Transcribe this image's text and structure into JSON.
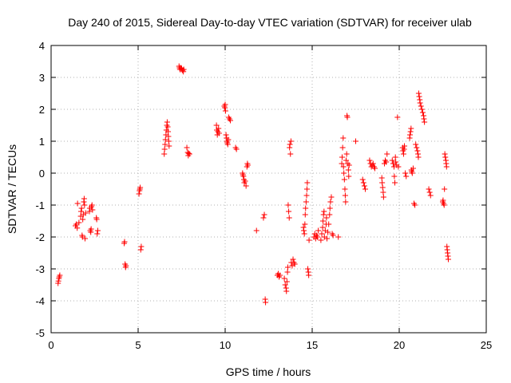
{
  "chart_data": {
    "type": "scatter",
    "title": "Day 240 of 2015, Sidereal Day-to-day VTEC variation (SDTVAR) for receiver ulab",
    "xlabel": "GPS time / hours",
    "ylabel": "SDTVAR / TECUs",
    "xlim": [
      0,
      25
    ],
    "ylim": [
      -5,
      4
    ],
    "xticks": [
      0,
      5,
      10,
      15,
      20,
      25
    ],
    "yticks": [
      -5,
      -4,
      -3,
      -2,
      -1,
      0,
      1,
      2,
      3,
      4
    ],
    "grid": true,
    "marker": "plus",
    "color": "#ff0000",
    "series": [
      {
        "name": "SDTVAR",
        "points": [
          [
            0.4,
            -3.45
          ],
          [
            0.42,
            -3.38
          ],
          [
            0.45,
            -3.3
          ],
          [
            0.47,
            -3.25
          ],
          [
            0.5,
            -3.2
          ],
          [
            1.4,
            -1.65
          ],
          [
            1.45,
            -1.6
          ],
          [
            1.5,
            -1.72
          ],
          [
            1.52,
            -0.95
          ],
          [
            1.6,
            -1.55
          ],
          [
            1.7,
            -1.35
          ],
          [
            1.72,
            -1.2
          ],
          [
            1.75,
            -1.1
          ],
          [
            1.78,
            -1.95
          ],
          [
            1.8,
            -2.0
          ],
          [
            1.82,
            -1.45
          ],
          [
            1.85,
            -1.3
          ],
          [
            1.88,
            -0.9
          ],
          [
            1.9,
            -0.8
          ],
          [
            1.92,
            -1.0
          ],
          [
            1.95,
            -2.05
          ],
          [
            1.98,
            -1.25
          ],
          [
            2.2,
            -1.2
          ],
          [
            2.22,
            -1.1
          ],
          [
            2.25,
            -1.8
          ],
          [
            2.28,
            -1.85
          ],
          [
            2.3,
            -1.75
          ],
          [
            2.32,
            -1.05
          ],
          [
            2.35,
            -1.0
          ],
          [
            2.38,
            -1.15
          ],
          [
            2.6,
            -1.4
          ],
          [
            2.62,
            -1.45
          ],
          [
            2.65,
            -1.9
          ],
          [
            2.68,
            -1.8
          ],
          [
            4.2,
            -2.2
          ],
          [
            4.22,
            -2.15
          ],
          [
            4.25,
            -2.85
          ],
          [
            4.28,
            -2.95
          ],
          [
            4.3,
            -2.9
          ],
          [
            5.05,
            -0.65
          ],
          [
            5.08,
            -0.55
          ],
          [
            5.1,
            -0.5
          ],
          [
            5.12,
            -0.45
          ],
          [
            5.15,
            -2.4
          ],
          [
            5.18,
            -2.3
          ],
          [
            6.5,
            0.6
          ],
          [
            6.52,
            0.75
          ],
          [
            6.55,
            0.9
          ],
          [
            6.57,
            1.05
          ],
          [
            6.6,
            1.2
          ],
          [
            6.62,
            1.35
          ],
          [
            6.65,
            1.5
          ],
          [
            6.67,
            1.6
          ],
          [
            6.7,
            1.45
          ],
          [
            6.72,
            1.3
          ],
          [
            6.74,
            1.15
          ],
          [
            6.76,
            1.0
          ],
          [
            6.78,
            0.85
          ],
          [
            7.35,
            3.35
          ],
          [
            7.38,
            3.3
          ],
          [
            7.4,
            3.25
          ],
          [
            7.45,
            3.3
          ],
          [
            7.5,
            3.28
          ],
          [
            7.55,
            3.22
          ],
          [
            7.6,
            3.18
          ],
          [
            7.62,
            3.25
          ],
          [
            7.8,
            0.8
          ],
          [
            7.85,
            0.65
          ],
          [
            7.88,
            0.55
          ],
          [
            7.9,
            0.62
          ],
          [
            7.95,
            0.6
          ],
          [
            9.5,
            1.5
          ],
          [
            9.52,
            1.35
          ],
          [
            9.55,
            1.2
          ],
          [
            9.58,
            1.3
          ],
          [
            9.62,
            1.4
          ],
          [
            9.65,
            1.25
          ],
          [
            9.95,
            2.1
          ],
          [
            9.98,
            2.05
          ],
          [
            10.0,
            2.15
          ],
          [
            10.02,
            1.95
          ],
          [
            10.05,
            1.2
          ],
          [
            10.08,
            1.1
          ],
          [
            10.1,
            1.0
          ],
          [
            10.12,
            0.95
          ],
          [
            10.15,
            0.9
          ],
          [
            10.18,
            1.05
          ],
          [
            10.2,
            1.75
          ],
          [
            10.25,
            1.7
          ],
          [
            10.3,
            1.65
          ],
          [
            10.6,
            0.8
          ],
          [
            10.65,
            0.75
          ],
          [
            11.0,
            0.0
          ],
          [
            11.02,
            -0.05
          ],
          [
            11.05,
            -0.1
          ],
          [
            11.08,
            -0.2
          ],
          [
            11.1,
            -0.3
          ],
          [
            11.15,
            -0.25
          ],
          [
            11.2,
            -0.4
          ],
          [
            11.25,
            0.2
          ],
          [
            11.28,
            0.3
          ],
          [
            11.3,
            0.25
          ],
          [
            11.8,
            -1.8
          ],
          [
            12.2,
            -1.4
          ],
          [
            12.25,
            -1.3
          ],
          [
            12.3,
            -3.95
          ],
          [
            12.32,
            -4.05
          ],
          [
            13.0,
            -3.2
          ],
          [
            13.05,
            -3.15
          ],
          [
            13.1,
            -3.25
          ],
          [
            13.15,
            -3.2
          ],
          [
            13.4,
            -3.3
          ],
          [
            13.45,
            -3.5
          ],
          [
            13.5,
            -3.6
          ],
          [
            13.52,
            -3.7
          ],
          [
            13.55,
            -3.4
          ],
          [
            13.58,
            -3.1
          ],
          [
            13.6,
            -2.95
          ],
          [
            13.62,
            -1.0
          ],
          [
            13.65,
            -1.2
          ],
          [
            13.68,
            -1.4
          ],
          [
            13.7,
            0.8
          ],
          [
            13.72,
            0.9
          ],
          [
            13.75,
            0.6
          ],
          [
            13.78,
            1.0
          ],
          [
            13.8,
            -2.8
          ],
          [
            13.85,
            -2.9
          ],
          [
            13.9,
            -2.7
          ],
          [
            13.95,
            -2.8
          ],
          [
            14.0,
            -2.85
          ],
          [
            14.5,
            -1.7
          ],
          [
            14.52,
            -1.8
          ],
          [
            14.55,
            -1.9
          ],
          [
            14.58,
            -1.6
          ],
          [
            14.6,
            -1.3
          ],
          [
            14.62,
            -1.1
          ],
          [
            14.65,
            -0.9
          ],
          [
            14.68,
            -0.7
          ],
          [
            14.7,
            -0.5
          ],
          [
            14.72,
            -0.3
          ],
          [
            14.75,
            -3.0
          ],
          [
            14.78,
            -3.1
          ],
          [
            14.8,
            -3.2
          ],
          [
            14.82,
            -2.1
          ],
          [
            15.1,
            -2.0
          ],
          [
            15.15,
            -1.9
          ],
          [
            15.2,
            -2.05
          ],
          [
            15.25,
            -1.95
          ],
          [
            15.3,
            -2.0
          ],
          [
            15.35,
            -1.8
          ],
          [
            15.5,
            -2.1
          ],
          [
            15.55,
            -1.9
          ],
          [
            15.6,
            -1.7
          ],
          [
            15.62,
            -1.5
          ],
          [
            15.65,
            -1.3
          ],
          [
            15.68,
            -1.2
          ],
          [
            15.7,
            -2.0
          ],
          [
            15.75,
            -1.8
          ],
          [
            15.8,
            -1.6
          ],
          [
            15.82,
            -1.4
          ],
          [
            15.85,
            -2.05
          ],
          [
            15.9,
            -1.85
          ],
          [
            15.95,
            -1.6
          ],
          [
            16.0,
            -1.3
          ],
          [
            16.02,
            -1.1
          ],
          [
            16.05,
            -0.9
          ],
          [
            16.1,
            -0.75
          ],
          [
            16.15,
            -1.9
          ],
          [
            16.2,
            -1.95
          ],
          [
            16.5,
            -2.0
          ],
          [
            16.7,
            0.3
          ],
          [
            16.72,
            0.5
          ],
          [
            16.75,
            0.8
          ],
          [
            16.78,
            1.1
          ],
          [
            16.8,
            0.2
          ],
          [
            16.82,
            0.0
          ],
          [
            16.85,
            -0.2
          ],
          [
            16.88,
            -0.5
          ],
          [
            16.9,
            -0.7
          ],
          [
            16.92,
            -0.9
          ],
          [
            16.95,
            0.4
          ],
          [
            16.98,
            0.6
          ],
          [
            17.0,
            1.8
          ],
          [
            17.02,
            1.75
          ],
          [
            17.05,
            0.3
          ],
          [
            17.08,
            0.1
          ],
          [
            17.1,
            -0.1
          ],
          [
            17.12,
            0.25
          ],
          [
            17.5,
            1.0
          ],
          [
            17.9,
            -0.2
          ],
          [
            17.95,
            -0.3
          ],
          [
            18.0,
            -0.4
          ],
          [
            18.05,
            -0.5
          ],
          [
            18.3,
            0.4
          ],
          [
            18.35,
            0.3
          ],
          [
            18.4,
            0.2
          ],
          [
            18.45,
            0.25
          ],
          [
            18.5,
            0.3
          ],
          [
            18.55,
            0.2
          ],
          [
            18.6,
            0.15
          ],
          [
            19.0,
            -0.15
          ],
          [
            19.02,
            -0.3
          ],
          [
            19.05,
            -0.45
          ],
          [
            19.08,
            -0.6
          ],
          [
            19.1,
            -0.75
          ],
          [
            19.15,
            0.3
          ],
          [
            19.2,
            0.4
          ],
          [
            19.25,
            0.35
          ],
          [
            19.3,
            0.6
          ],
          [
            19.6,
            0.4
          ],
          [
            19.65,
            0.3
          ],
          [
            19.7,
            0.2
          ],
          [
            19.72,
            -0.1
          ],
          [
            19.75,
            -0.3
          ],
          [
            19.78,
            0.5
          ],
          [
            19.8,
            0.35
          ],
          [
            19.85,
            0.25
          ],
          [
            19.9,
            1.75
          ],
          [
            19.95,
            0.2
          ],
          [
            20.2,
            0.8
          ],
          [
            20.22,
            0.7
          ],
          [
            20.25,
            0.6
          ],
          [
            20.28,
            0.75
          ],
          [
            20.3,
            0.85
          ],
          [
            20.35,
            0.0
          ],
          [
            20.4,
            -0.1
          ],
          [
            20.6,
            1.1
          ],
          [
            20.62,
            1.2
          ],
          [
            20.65,
            1.3
          ],
          [
            20.68,
            1.4
          ],
          [
            20.7,
            0.1
          ],
          [
            20.72,
            0.05
          ],
          [
            20.75,
            0.0
          ],
          [
            20.8,
            0.15
          ],
          [
            20.85,
            -0.95
          ],
          [
            20.9,
            -1.0
          ],
          [
            20.95,
            0.9
          ],
          [
            21.0,
            0.8
          ],
          [
            21.05,
            0.7
          ],
          [
            21.08,
            0.6
          ],
          [
            21.1,
            0.5
          ],
          [
            21.12,
            2.5
          ],
          [
            21.15,
            2.4
          ],
          [
            21.18,
            2.3
          ],
          [
            21.2,
            2.2
          ],
          [
            21.25,
            2.1
          ],
          [
            21.3,
            2.0
          ],
          [
            21.35,
            1.9
          ],
          [
            21.4,
            1.8
          ],
          [
            21.42,
            1.7
          ],
          [
            21.45,
            1.6
          ],
          [
            21.7,
            -0.5
          ],
          [
            21.75,
            -0.6
          ],
          [
            21.8,
            -0.7
          ],
          [
            22.5,
            -0.9
          ],
          [
            22.52,
            -0.85
          ],
          [
            22.55,
            -0.95
          ],
          [
            22.58,
            -1.0
          ],
          [
            22.6,
            -0.5
          ],
          [
            22.62,
            0.6
          ],
          [
            22.65,
            0.5
          ],
          [
            22.68,
            0.4
          ],
          [
            22.7,
            0.3
          ],
          [
            22.72,
            0.2
          ],
          [
            22.74,
            -2.3
          ],
          [
            22.76,
            -2.4
          ],
          [
            22.78,
            -2.5
          ],
          [
            22.8,
            -2.6
          ],
          [
            22.82,
            -2.7
          ]
        ]
      }
    ]
  }
}
